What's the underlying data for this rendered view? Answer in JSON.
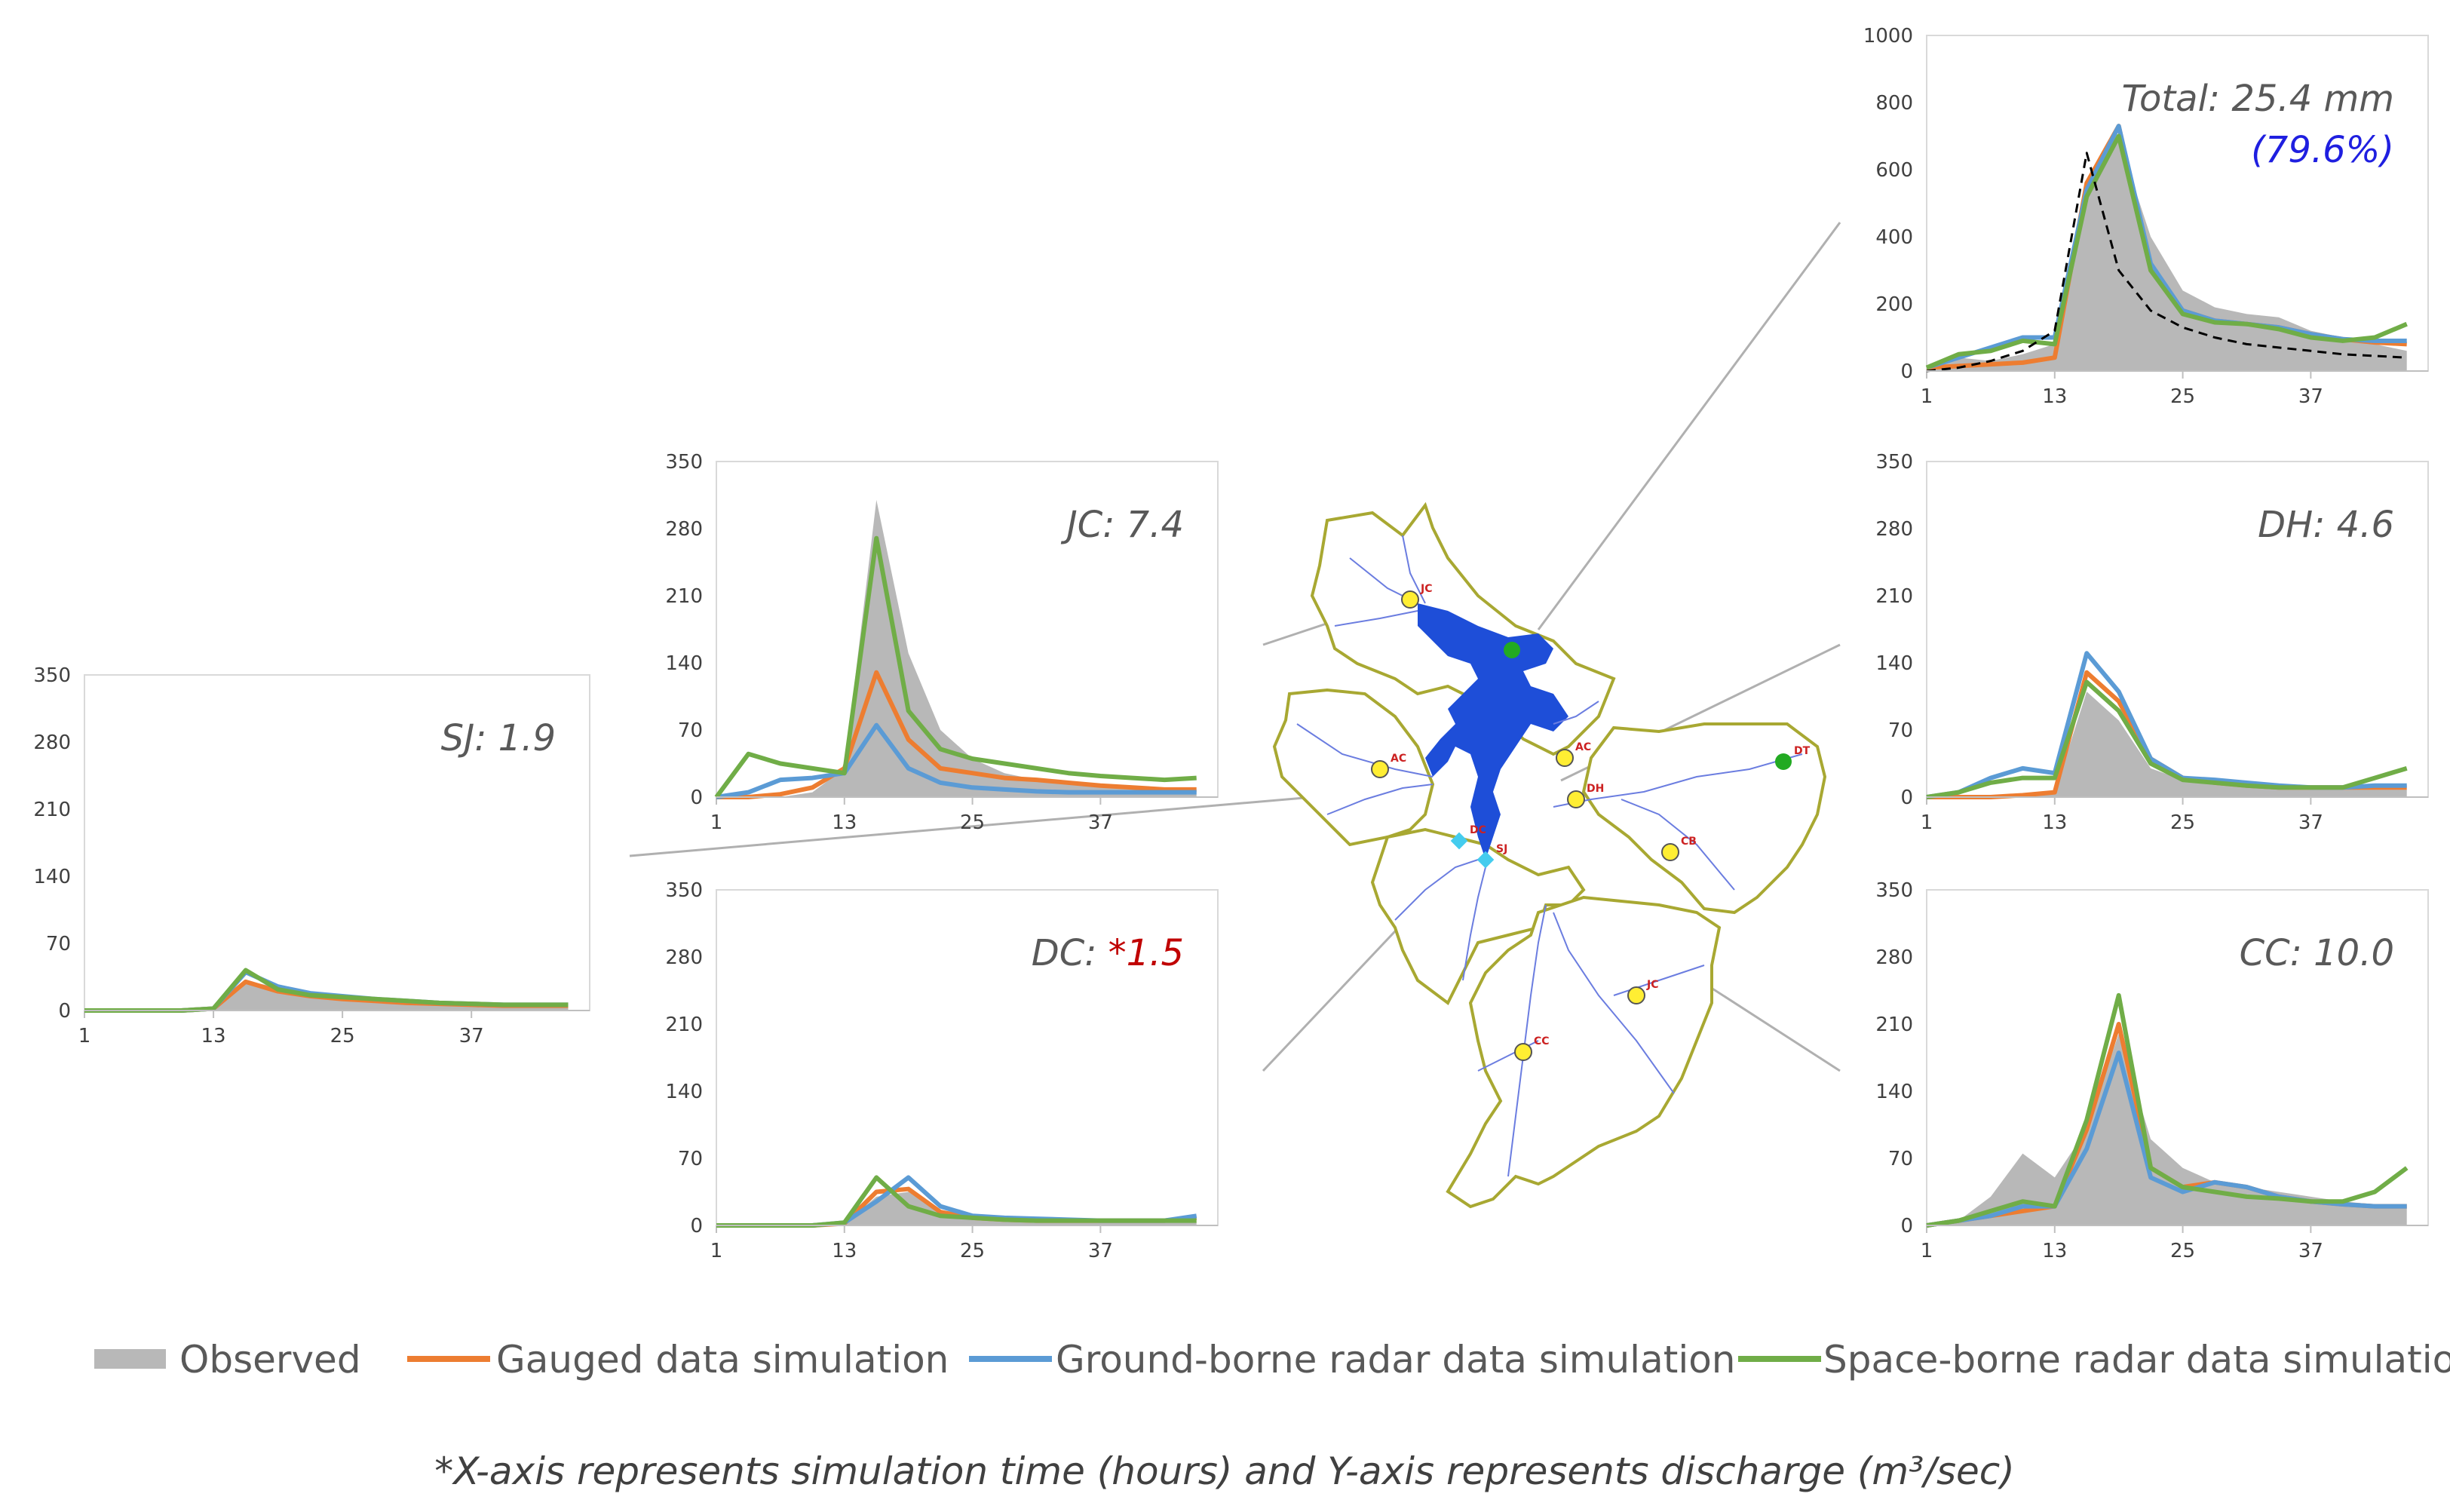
{
  "legend": {
    "observed": "Observed",
    "gauged": "Gauged data simulation",
    "ground": "Ground-borne radar data simulation",
    "space": "Space-borne radar data simulation"
  },
  "footnote": "*X-axis represents simulation time (hours) and Y-axis represents discharge (m³/sec)",
  "colors": {
    "observed": "#b8b8b8",
    "gauged": "#ed7d31",
    "ground": "#5b9bd5",
    "space": "#70ad47",
    "star": "#c00000",
    "pct": "#1f1fe0",
    "map_river": "#1e4ed8",
    "map_boundary": "#a8a832"
  },
  "map": {
    "station_labels": [
      "JC",
      "AC",
      "AC",
      "DH",
      "CB",
      "SJ",
      "DC",
      "JC",
      "CC",
      "DT"
    ]
  },
  "chart_data": [
    {
      "type": "area+line",
      "id": "total",
      "label": "Total: 25.4 mm",
      "pct_label": "(79.6%)",
      "x": [
        1,
        4,
        7,
        10,
        13,
        16,
        19,
        22,
        25,
        28,
        31,
        34,
        37,
        40,
        43,
        46
      ],
      "xticks": [
        1,
        13,
        25,
        37
      ],
      "yticks": [
        0,
        200,
        400,
        600,
        800,
        1000
      ],
      "ylim": [
        0,
        1000
      ],
      "xlim": [
        1,
        48
      ],
      "series": [
        {
          "name": "Observed",
          "values": [
            10,
            40,
            30,
            50,
            80,
            560,
            690,
            400,
            240,
            190,
            170,
            160,
            120,
            100,
            80,
            60
          ]
        },
        {
          "name": "Gauged data simulation",
          "values": [
            10,
            15,
            20,
            25,
            40,
            560,
            730,
            300,
            180,
            150,
            140,
            130,
            110,
            95,
            85,
            80
          ]
        },
        {
          "name": "Ground-borne radar data simulation",
          "values": [
            10,
            40,
            70,
            100,
            100,
            540,
            730,
            320,
            180,
            150,
            140,
            130,
            110,
            95,
            90,
            90
          ]
        },
        {
          "name": "Space-borne radar data simulation",
          "values": [
            10,
            50,
            60,
            90,
            80,
            520,
            700,
            300,
            170,
            145,
            140,
            125,
            100,
            90,
            100,
            140
          ]
        },
        {
          "name": "",
          "values": [
            0,
            10,
            30,
            60,
            120,
            650,
            300,
            180,
            130,
            100,
            80,
            70,
            60,
            50,
            45,
            40
          ]
        }
      ]
    },
    {
      "type": "area+line",
      "id": "jc",
      "label": "JC: 7.4",
      "pct_label": "",
      "x": [
        1,
        4,
        7,
        10,
        13,
        16,
        19,
        22,
        25,
        28,
        31,
        34,
        37,
        40,
        43,
        46
      ],
      "xticks": [
        1,
        13,
        25,
        37
      ],
      "yticks": [
        0,
        70,
        140,
        210,
        280,
        350
      ],
      "ylim": [
        0,
        350
      ],
      "xlim": [
        1,
        48
      ],
      "series": [
        {
          "name": "Observed",
          "values": [
            0,
            0,
            0,
            5,
            30,
            310,
            150,
            70,
            40,
            25,
            18,
            15,
            12,
            10,
            8,
            8
          ]
        },
        {
          "name": "Gauged data simulation",
          "values": [
            0,
            0,
            3,
            10,
            30,
            130,
            60,
            30,
            25,
            20,
            18,
            15,
            12,
            10,
            8,
            8
          ]
        },
        {
          "name": "Ground-borne radar data simulation",
          "values": [
            0,
            5,
            18,
            20,
            25,
            75,
            30,
            15,
            10,
            8,
            6,
            5,
            5,
            5,
            5,
            5
          ]
        },
        {
          "name": "Space-borne radar data simulation",
          "values": [
            0,
            45,
            35,
            30,
            25,
            270,
            90,
            50,
            40,
            35,
            30,
            25,
            22,
            20,
            18,
            20
          ]
        }
      ]
    },
    {
      "type": "area+line",
      "id": "dc",
      "label": "DC: ",
      "star_label": "*1.5",
      "pct_label": "",
      "x": [
        1,
        4,
        7,
        10,
        13,
        16,
        19,
        22,
        25,
        28,
        31,
        34,
        37,
        40,
        43,
        46
      ],
      "xticks": [
        1,
        13,
        25,
        37
      ],
      "yticks": [
        0,
        70,
        140,
        210,
        280,
        350
      ],
      "ylim": [
        0,
        350
      ],
      "xlim": [
        1,
        48
      ],
      "series": [
        {
          "name": "Observed",
          "values": [
            0,
            0,
            0,
            0,
            2,
            30,
            35,
            15,
            8,
            6,
            5,
            5,
            4,
            4,
            4,
            4
          ]
        },
        {
          "name": "Gauged data simulation",
          "values": [
            0,
            0,
            0,
            0,
            2,
            35,
            38,
            14,
            8,
            6,
            5,
            5,
            5,
            5,
            5,
            8
          ]
        },
        {
          "name": "Ground-borne radar data simulation",
          "values": [
            0,
            0,
            0,
            0,
            3,
            25,
            50,
            20,
            10,
            8,
            7,
            6,
            5,
            5,
            5,
            10
          ]
        },
        {
          "name": "Space-borne radar data simulation",
          "values": [
            0,
            0,
            0,
            0,
            3,
            50,
            20,
            10,
            8,
            6,
            5,
            5,
            5,
            5,
            5,
            5
          ]
        }
      ]
    },
    {
      "type": "area+line",
      "id": "sj",
      "label": "SJ: 1.9",
      "pct_label": "",
      "x": [
        1,
        4,
        7,
        10,
        13,
        16,
        19,
        22,
        25,
        28,
        31,
        34,
        37,
        40,
        43,
        46
      ],
      "xticks": [
        1,
        13,
        25,
        37
      ],
      "yticks": [
        0,
        70,
        140,
        210,
        280,
        350
      ],
      "ylim": [
        0,
        350
      ],
      "xlim": [
        1,
        48
      ],
      "series": [
        {
          "name": "Observed",
          "values": [
            0,
            0,
            0,
            0,
            0,
            30,
            25,
            15,
            12,
            10,
            8,
            6,
            5,
            5,
            5,
            5
          ]
        },
        {
          "name": "Gauged data simulation",
          "values": [
            0,
            0,
            0,
            0,
            2,
            30,
            20,
            15,
            12,
            10,
            8,
            7,
            6,
            5,
            5,
            5
          ]
        },
        {
          "name": "Ground-borne radar data simulation",
          "values": [
            0,
            0,
            0,
            0,
            2,
            40,
            25,
            18,
            15,
            12,
            10,
            8,
            7,
            6,
            6,
            6
          ]
        },
        {
          "name": "Space-borne radar data simulation",
          "values": [
            0,
            0,
            0,
            0,
            2,
            42,
            22,
            16,
            14,
            12,
            10,
            8,
            7,
            6,
            6,
            6
          ]
        }
      ]
    },
    {
      "type": "area+line",
      "id": "dh",
      "label": "DH: 4.6",
      "pct_label": "",
      "x": [
        1,
        4,
        7,
        10,
        13,
        16,
        19,
        22,
        25,
        28,
        31,
        34,
        37,
        40,
        43,
        46
      ],
      "xticks": [
        1,
        13,
        25,
        37
      ],
      "yticks": [
        0,
        70,
        140,
        210,
        280,
        350
      ],
      "ylim": [
        0,
        350
      ],
      "xlim": [
        1,
        48
      ],
      "series": [
        {
          "name": "Observed",
          "values": [
            0,
            0,
            0,
            0,
            5,
            110,
            80,
            30,
            18,
            15,
            12,
            10,
            10,
            10,
            8,
            8
          ]
        },
        {
          "name": "Gauged data simulation",
          "values": [
            0,
            0,
            0,
            2,
            5,
            130,
            100,
            40,
            20,
            15,
            12,
            10,
            10,
            10,
            10,
            10
          ]
        },
        {
          "name": "Ground-borne radar data simulation",
          "values": [
            0,
            5,
            20,
            30,
            25,
            150,
            110,
            40,
            20,
            18,
            15,
            12,
            10,
            10,
            12,
            12
          ]
        },
        {
          "name": "Space-borne radar data simulation",
          "values": [
            0,
            5,
            15,
            20,
            20,
            120,
            90,
            35,
            18,
            15,
            12,
            10,
            10,
            10,
            20,
            30
          ]
        }
      ]
    },
    {
      "type": "area+line",
      "id": "cc",
      "label": "CC: 10.0",
      "pct_label": "",
      "x": [
        1,
        4,
        7,
        10,
        13,
        16,
        19,
        22,
        25,
        28,
        31,
        34,
        37,
        40,
        43,
        46
      ],
      "xticks": [
        1,
        13,
        25,
        37
      ],
      "yticks": [
        0,
        70,
        140,
        210,
        280,
        350
      ],
      "ylim": [
        0,
        350
      ],
      "xlim": [
        1,
        48
      ],
      "series": [
        {
          "name": "Observed",
          "values": [
            0,
            5,
            30,
            75,
            50,
            100,
            200,
            90,
            60,
            45,
            40,
            35,
            30,
            25,
            22,
            20
          ]
        },
        {
          "name": "Gauged data simulation",
          "values": [
            0,
            5,
            10,
            15,
            20,
            100,
            210,
            60,
            40,
            45,
            40,
            30,
            25,
            22,
            20,
            20
          ]
        },
        {
          "name": "Ground-borne radar data simulation",
          "values": [
            0,
            5,
            10,
            20,
            20,
            80,
            180,
            50,
            35,
            45,
            40,
            30,
            25,
            22,
            20,
            20
          ]
        },
        {
          "name": "Space-borne radar data simulation",
          "values": [
            0,
            5,
            15,
            25,
            20,
            110,
            240,
            60,
            40,
            35,
            30,
            28,
            25,
            25,
            35,
            60
          ]
        }
      ]
    }
  ]
}
